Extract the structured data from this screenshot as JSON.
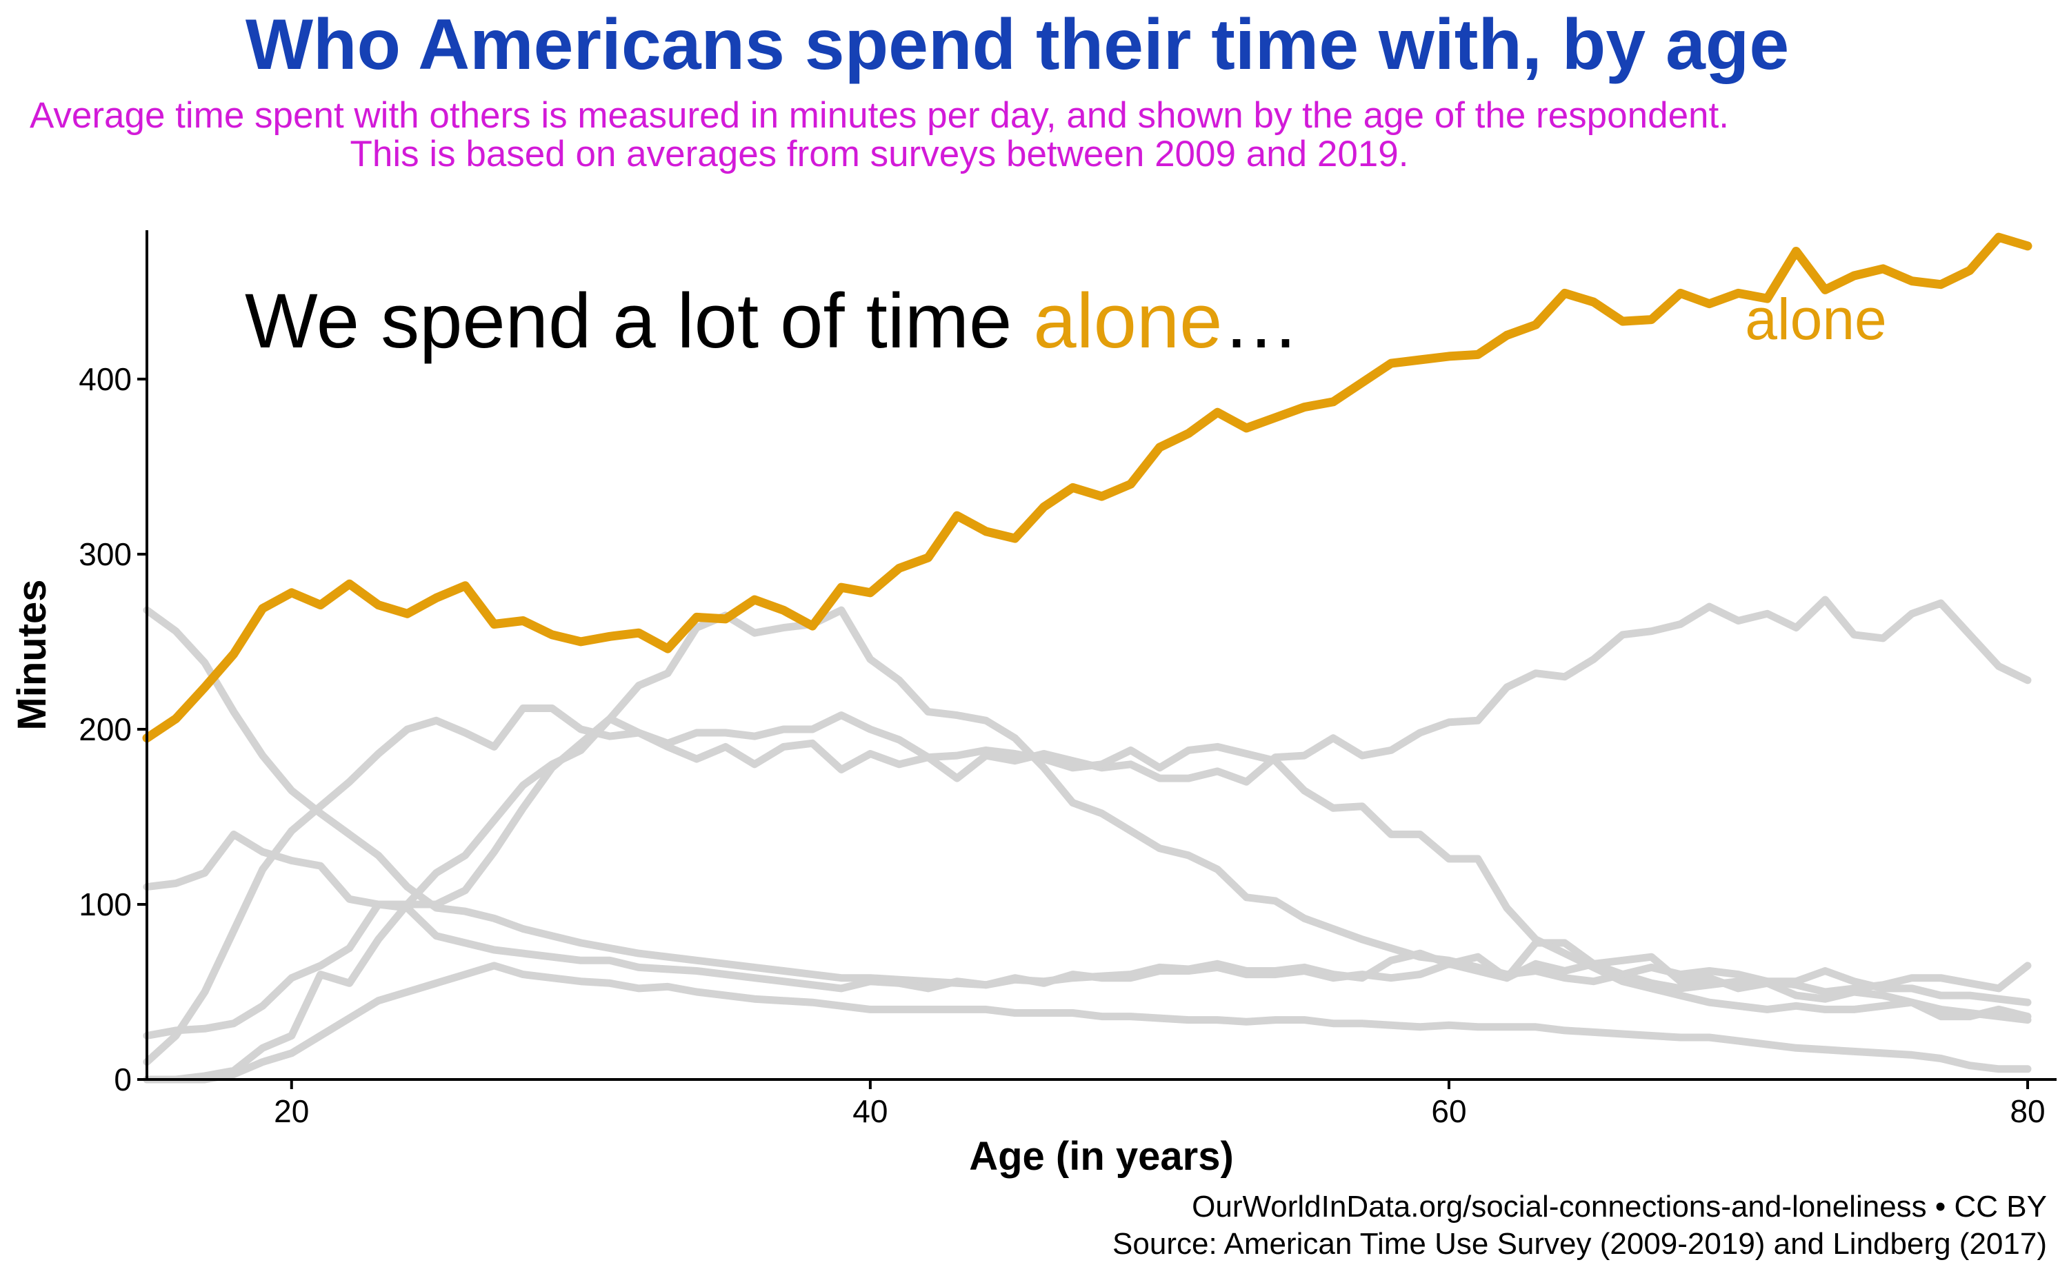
{
  "title": "Who Americans spend their time with, by age",
  "subtitle": "Average time spent with others is measured in minutes per day, and shown by the age of the respondent. This is based on averages from surveys between 2009 and 2019.",
  "caption": {
    "line1": "OurWorldInData.org/social-connections-and-loneliness • CC BY",
    "line2": "Source: American Time Use Survey (2009-2019) and Lindberg (2017)"
  },
  "annotation": {
    "prefix": "We spend a lot of time ",
    "highlight": "alone",
    "suffix": "…"
  },
  "series_label": "alone",
  "colors": {
    "highlight": "#e39e0a",
    "background_series": "#d3d3d3",
    "title": "#1641b5",
    "subtitle": "#d21ad8"
  },
  "chart_data": {
    "type": "line",
    "title": "Who Americans spend their time with, by age",
    "xlabel": "Age (in years)",
    "ylabel": "Minutes",
    "xlim": [
      15,
      81
    ],
    "ylim": [
      0,
      485
    ],
    "xticks": [
      20,
      40,
      60,
      80
    ],
    "yticks": [
      0,
      100,
      200,
      300,
      400
    ],
    "grid": false,
    "x": [
      15,
      16,
      17,
      18,
      19,
      20,
      21,
      22,
      23,
      24,
      25,
      26,
      27,
      28,
      29,
      30,
      31,
      32,
      33,
      34,
      35,
      36,
      37,
      38,
      39,
      40,
      41,
      42,
      43,
      44,
      45,
      46,
      47,
      48,
      49,
      50,
      51,
      52,
      53,
      54,
      55,
      56,
      57,
      58,
      59,
      60,
      61,
      62,
      63,
      64,
      65,
      66,
      67,
      68,
      69,
      70,
      71,
      72,
      73,
      74,
      75,
      76,
      77,
      78,
      79,
      80
    ],
    "series": [
      {
        "name": "alone",
        "highlight": true,
        "values": [
          195,
          206,
          224,
          243,
          269,
          278,
          271,
          283,
          271,
          266,
          275,
          282,
          260,
          262,
          254,
          250,
          253,
          255,
          246,
          264,
          263,
          274,
          268,
          259,
          281,
          278,
          292,
          298,
          322,
          313,
          309,
          327,
          338,
          333,
          340,
          361,
          369,
          381,
          372,
          378,
          384,
          387,
          398,
          409,
          411,
          413,
          414,
          425,
          431,
          449,
          444,
          433,
          434,
          449,
          443,
          449,
          446,
          473,
          451,
          459,
          463,
          456,
          454,
          462,
          481,
          476
        ]
      },
      {
        "values": [
          268,
          256,
          238,
          210,
          185,
          165,
          152,
          140,
          128,
          110,
          98,
          96,
          92,
          86,
          82,
          78,
          75,
          72,
          70,
          68,
          66,
          64,
          62,
          60,
          58,
          58,
          57,
          56,
          55,
          54,
          57,
          56,
          58,
          59,
          60,
          64,
          63,
          66,
          62,
          62,
          64,
          60,
          58,
          68,
          72,
          66,
          70,
          58,
          66,
          62,
          66,
          68,
          70,
          56,
          58,
          52,
          55,
          48,
          46,
          50,
          48,
          44,
          40,
          38,
          36,
          34
        ]
      },
      {
        "values": [
          110,
          112,
          118,
          140,
          130,
          125,
          122,
          103,
          100,
          98,
          82,
          78,
          74,
          72,
          70,
          68,
          68,
          64,
          63,
          62,
          60,
          58,
          56,
          54,
          52,
          56,
          55,
          52,
          56,
          54,
          58,
          55,
          60,
          58,
          58,
          62,
          62,
          64,
          60,
          60,
          62,
          58,
          60,
          58,
          60,
          66,
          62,
          58,
          78,
          78,
          66,
          60,
          55,
          52,
          54,
          56,
          56,
          56,
          62,
          56,
          52,
          52,
          48,
          48,
          46,
          44
        ]
      },
      {
        "values": [
          25,
          28,
          29,
          32,
          42,
          58,
          65,
          75,
          100,
          100,
          100,
          108,
          130,
          155,
          178,
          192,
          206,
          225,
          232,
          258,
          265,
          255,
          258,
          260,
          268,
          240,
          228,
          210,
          208,
          205,
          195,
          178,
          158,
          152,
          142,
          132,
          128,
          120,
          104,
          102,
          92,
          86,
          80,
          75,
          70,
          68,
          64,
          60,
          62,
          58,
          56,
          60,
          64,
          60,
          62,
          60,
          56,
          54,
          50,
          52,
          54,
          58,
          58,
          55,
          52,
          65
        ]
      },
      {
        "values": [
          10,
          25,
          50,
          85,
          120,
          142,
          156,
          170,
          186,
          200,
          205,
          198,
          190,
          212,
          212,
          200,
          196,
          198,
          190,
          183,
          190,
          180,
          190,
          192,
          177,
          186,
          180,
          184,
          172,
          185,
          182,
          186,
          182,
          178,
          180,
          172,
          172,
          176,
          170,
          184,
          185,
          195,
          185,
          188,
          198,
          204,
          205,
          224,
          232,
          230,
          240,
          254,
          256,
          260,
          270,
          262,
          266,
          258,
          274,
          254,
          252,
          266,
          272,
          254,
          236,
          228
        ]
      },
      {
        "values": [
          0,
          0,
          2,
          5,
          18,
          25,
          60,
          55,
          80,
          100,
          118,
          128,
          148,
          168,
          180,
          188,
          206,
          198,
          192,
          198,
          198,
          196,
          200,
          200,
          208,
          200,
          194,
          184,
          185,
          188,
          186,
          183,
          178,
          180,
          188,
          178,
          188,
          190,
          186,
          182,
          165,
          155,
          156,
          140,
          140,
          126,
          126,
          98,
          80,
          72,
          64,
          56,
          52,
          48,
          44,
          42,
          40,
          42,
          40,
          40,
          42,
          44,
          36,
          36,
          40,
          36
        ]
      },
      {
        "values": [
          0,
          0,
          0,
          3,
          10,
          15,
          25,
          35,
          45,
          50,
          55,
          60,
          65,
          60,
          58,
          56,
          55,
          52,
          53,
          50,
          48,
          46,
          45,
          44,
          42,
          40,
          40,
          40,
          40,
          40,
          38,
          38,
          38,
          36,
          36,
          35,
          34,
          34,
          33,
          34,
          34,
          32,
          32,
          31,
          30,
          31,
          30,
          30,
          30,
          28,
          27,
          26,
          25,
          24,
          24,
          22,
          20,
          18,
          17,
          16,
          15,
          14,
          12,
          8,
          6,
          6
        ]
      }
    ]
  }
}
